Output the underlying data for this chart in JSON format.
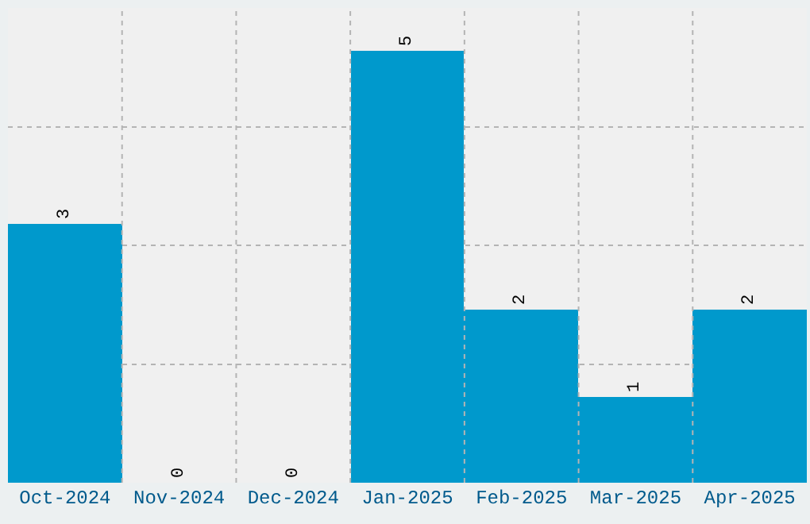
{
  "chart_data": {
    "type": "bar",
    "categories": [
      "Oct-2024",
      "Nov-2024",
      "Dec-2024",
      "Jan-2025",
      "Feb-2025",
      "Mar-2025",
      "Apr-2025"
    ],
    "values": [
      3,
      0,
      0,
      5,
      2,
      1,
      2
    ],
    "color": "#0099cc",
    "data_labels": true,
    "ylim": [
      0,
      5.5
    ],
    "yticks": [
      {
        "value": 1.375,
        "label": null
      },
      {
        "value": 2.75,
        "label": null
      },
      {
        "value": 4.125,
        "label": null
      }
    ],
    "tick_labels": "x",
    "grid": true
  }
}
